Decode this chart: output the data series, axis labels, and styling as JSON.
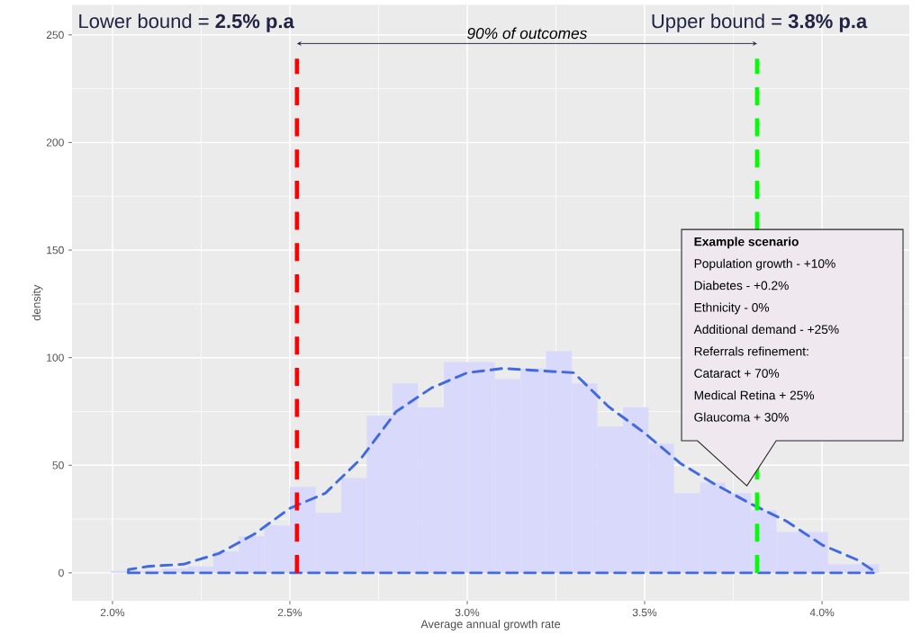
{
  "chart_data": {
    "type": "histogram",
    "xlabel": "Average annual growth rate",
    "ylabel": "density",
    "xlim": [
      1.886,
      4.246
    ],
    "ylim": [
      -13,
      264
    ],
    "xticks": [
      {
        "value": 2.0,
        "label": "2.0%"
      },
      {
        "value": 2.5,
        "label": "2.5%"
      },
      {
        "value": 3.0,
        "label": "3.0%"
      },
      {
        "value": 3.5,
        "label": "3.5%"
      },
      {
        "value": 4.0,
        "label": "4.0%"
      }
    ],
    "yticks": [
      0,
      50,
      100,
      150,
      200,
      250
    ],
    "grid": true,
    "series": [
      {
        "color": "#d9d9fc",
        "bins": [
          1.995,
          2.067,
          2.139,
          2.212,
          2.284,
          2.356,
          2.428,
          2.5,
          2.573,
          2.645,
          2.717,
          2.789,
          2.861,
          2.934,
          3.006,
          3.078,
          3.15,
          3.222,
          3.295,
          3.367,
          3.439,
          3.511,
          3.583,
          3.656,
          3.728,
          3.8,
          3.872,
          3.944,
          4.017,
          4.089,
          4.161
        ],
        "values": [
          1,
          1,
          2,
          3,
          10,
          17,
          22,
          40,
          28,
          44,
          73,
          88,
          77,
          98,
          98,
          90,
          95,
          103,
          88,
          68,
          77,
          60,
          37,
          42,
          37,
          29,
          19,
          19,
          4,
          4
        ]
      },
      {
        "type": "line",
        "color": "#4169e1",
        "line_style": "dashed",
        "x": [
          2.045,
          2.045,
          2.1,
          2.2,
          2.3,
          2.4,
          2.5,
          2.6,
          2.7,
          2.8,
          2.9,
          3.0,
          3.1,
          3.2,
          3.3,
          3.4,
          3.5,
          3.6,
          3.7,
          3.8,
          3.9,
          4.0,
          4.1,
          4.145,
          4.145
        ],
        "values": [
          0,
          1.5,
          3,
          4,
          9,
          18,
          30,
          37,
          53,
          75,
          86,
          93,
          95,
          94,
          93,
          77,
          65,
          51,
          41,
          32,
          24,
          13,
          6,
          1,
          0
        ]
      },
      {
        "type": "line",
        "color": "#4169e1",
        "line_style": "dashed",
        "x": [
          2.045,
          4.145
        ],
        "values": [
          0,
          0
        ]
      }
    ],
    "ref_lines": [
      {
        "axis": "x",
        "value": 2.52,
        "label": "Lower bound = **2.5% p.a**",
        "color": "#ff0000",
        "line_style": "dashed"
      },
      {
        "axis": "x",
        "value": 3.817,
        "label": "Upper bound = **3.8% p.a**",
        "color": "#00ff00",
        "line_style": "dashed"
      }
    ],
    "annotations": [
      "90% of outcomes",
      "Example scenario",
      "Population growth  - +10%",
      "Diabetes  - +0.2%",
      "Ethnicity - 0%",
      "Additional demand  - +25%",
      "Referrals  refinement:",
      "Cataract  + 70%",
      "Medical Retina + 25%",
      "Glaucoma + 30%"
    ]
  }
}
